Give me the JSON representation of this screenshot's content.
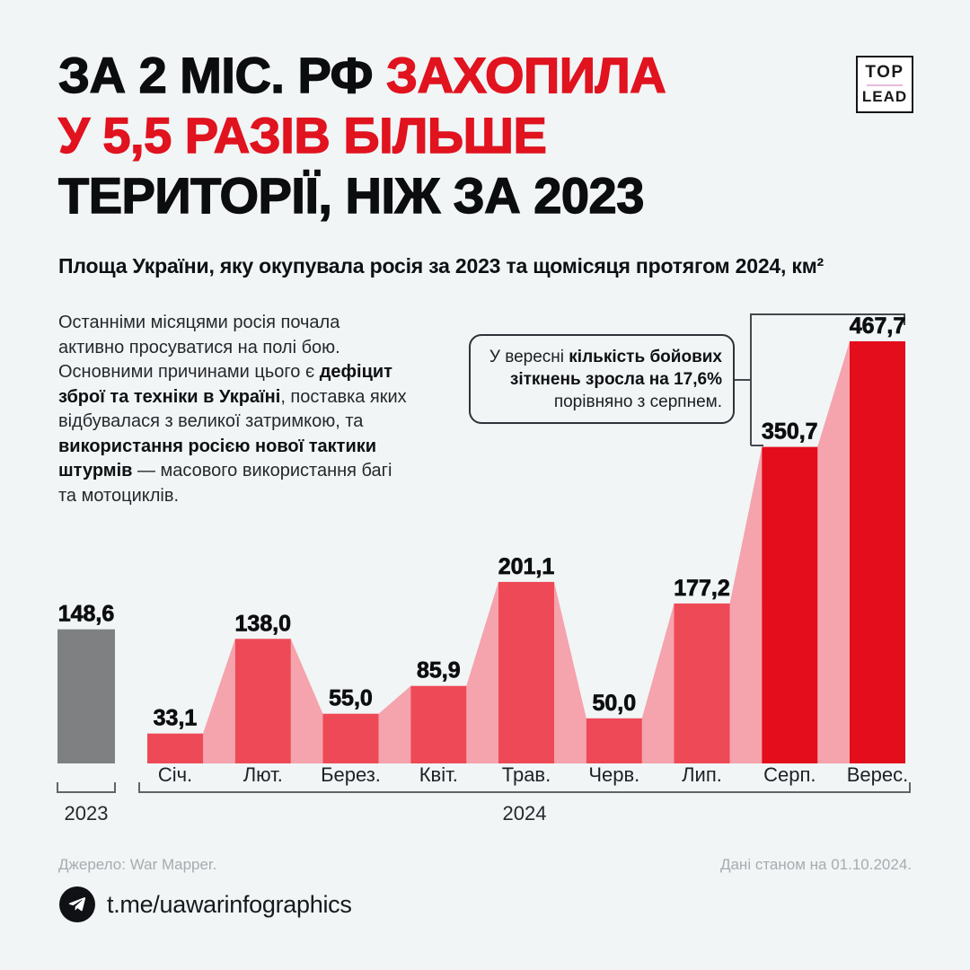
{
  "logo": {
    "top": "TOP",
    "lead": "LEAD",
    "rule_color": "#e6bcdb"
  },
  "title": {
    "line1_black": "ЗА 2 МІС. РФ ",
    "line1_red": "ЗАХОПИЛА",
    "line2_red": "У 5,5 РАЗІВ БІЛЬШЕ",
    "line3_black": "ТЕРИТОРІЇ, НІЖ ЗА 2023"
  },
  "subtitle": "Площа України, яку окупувала росія за 2023 та щомісяця протягом 2024, км²",
  "description": {
    "part1": "Останніми місяцями росія почала активно просуватися на полі бою. Основними причинами цього є ",
    "bold1": "дефіцит зброї та техніки в Україні",
    "part2": ", поставка яких відбувалася з великої затримкою, та ",
    "bold2": "використання росією нової тактики штурмів",
    "part3": " — масового використання багі та мотоциклів."
  },
  "callout": {
    "part1": "У вересні ",
    "bold": "кількість бойових зіткнень зросла на 17,6%",
    "part2": " порівняно з серпнем."
  },
  "chart_data": {
    "type": "bar",
    "title": "Площа України, яку окупувала росія за 2023 та щомісяця протягом 2024, км²",
    "unit": "км²",
    "baseline_2023": {
      "label": "2023",
      "value": 148.6,
      "display": "148,6"
    },
    "categories": [
      "Січ.",
      "Лют.",
      "Берез.",
      "Квіт.",
      "Трав.",
      "Черв.",
      "Лип.",
      "Серп.",
      "Верес."
    ],
    "values": [
      33.1,
      138.0,
      55.0,
      85.9,
      201.1,
      50.0,
      177.2,
      350.7,
      467.7
    ],
    "displays": [
      "33,1",
      "138,0",
      "55,0",
      "85,9",
      "201,1",
      "50,0",
      "177,2",
      "350,7",
      "467,7"
    ],
    "group_label_2024": "2024",
    "highlight_from_index": 7,
    "ylim": [
      0,
      467.7
    ],
    "grid": false,
    "legend": false,
    "colors": {
      "bar_2023": "#7f8082",
      "bar": "#ee4956",
      "bar_highlight": "#e30d1b",
      "connector": "#f5a3ac",
      "value_label": "#0d0e10",
      "month_label": "#1e2126",
      "year_label": "#26282c",
      "axis_bracket": "#606468",
      "callout_bracket": "#45484c"
    }
  },
  "footer": {
    "source": "Джерело: War Mapper.",
    "data_note": "Дані станом на 01.10.2024.",
    "telegram": "t.me/uawarinfographics"
  },
  "page_colors": {
    "background": "#f1f5f6",
    "accent_red": "#e0131f",
    "text_black": "#0c0d0f"
  }
}
